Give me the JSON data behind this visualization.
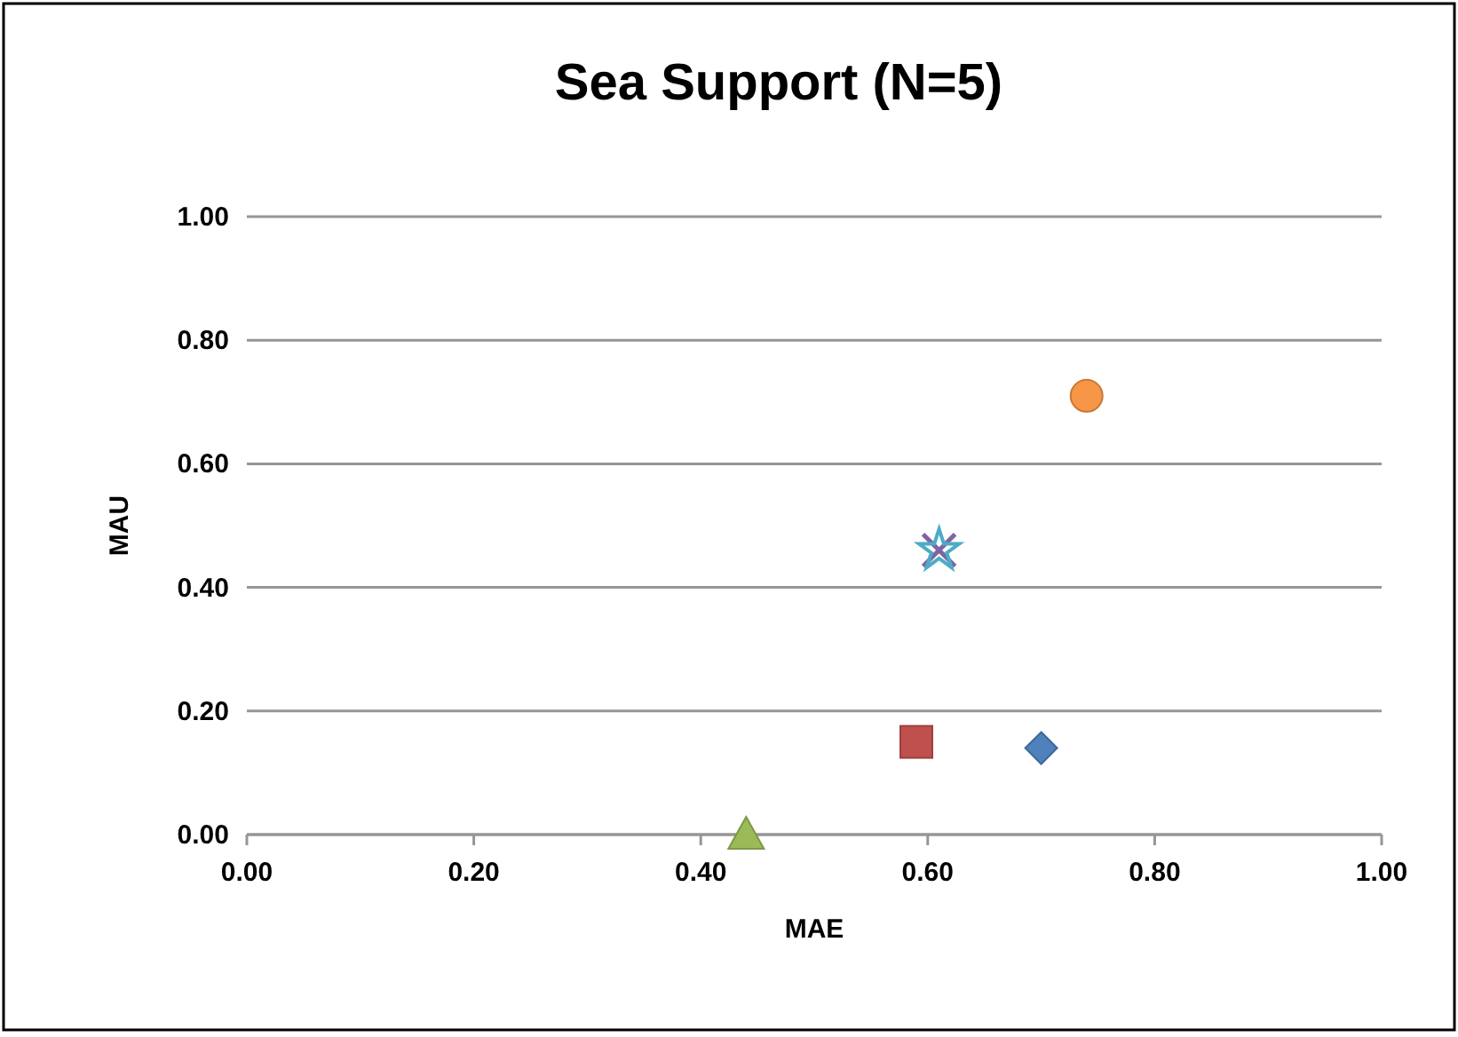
{
  "chart_data": {
    "type": "scatter",
    "title": "Sea Support (N=5)",
    "xlabel": "MAE",
    "ylabel": "MAU",
    "xlim": [
      0,
      1
    ],
    "ylim": [
      0,
      1
    ],
    "xticks": [
      {
        "value": 0,
        "label": "0.00"
      },
      {
        "value": 0.2,
        "label": "0.20"
      },
      {
        "value": 0.4,
        "label": "0.40"
      },
      {
        "value": 0.6,
        "label": "0.60"
      },
      {
        "value": 0.8,
        "label": "0.80"
      },
      {
        "value": 1,
        "label": "1.00"
      }
    ],
    "yticks": [
      {
        "value": 0,
        "label": "0.00"
      },
      {
        "value": 0.2,
        "label": "0.20"
      },
      {
        "value": 0.4,
        "label": "0.40"
      },
      {
        "value": 0.6,
        "label": "0.60"
      },
      {
        "value": 0.8,
        "label": "0.80"
      },
      {
        "value": 1,
        "label": "1.00"
      }
    ],
    "grid": "y",
    "series": [
      {
        "color": "#4f81bd",
        "marker": "diamond",
        "x": [
          0.7
        ],
        "values": [
          0.14
        ]
      },
      {
        "color": "#c0504d",
        "marker": "square",
        "x": [
          0.59
        ],
        "values": [
          0.15
        ]
      },
      {
        "color": "#9bbb59",
        "marker": "triangle",
        "x": [
          0.44
        ],
        "values": [
          0
        ]
      },
      {
        "color": "#8064a2",
        "marker": "cross",
        "x": [
          0.61
        ],
        "values": [
          0.46
        ]
      },
      {
        "color": "#4bacc6",
        "marker": "star",
        "x": [
          0.61
        ],
        "values": [
          0.46
        ]
      },
      {
        "color": "#f79646",
        "marker": "circle",
        "x": [
          0.74
        ],
        "values": [
          0.71
        ]
      }
    ]
  }
}
